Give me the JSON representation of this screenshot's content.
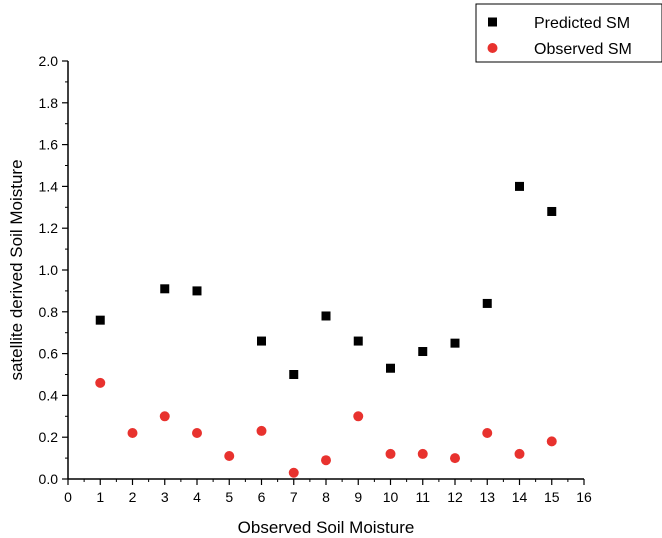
{
  "chart_data": {
    "type": "scatter",
    "title": "",
    "xlabel": "Observed Soil Moisture",
    "ylabel": "satellite derived Soil Moisture",
    "xlim": [
      0,
      16
    ],
    "ylim": [
      0.0,
      2.0
    ],
    "x_ticks": [
      0,
      1,
      2,
      3,
      4,
      5,
      6,
      7,
      8,
      9,
      10,
      11,
      12,
      13,
      14,
      15,
      16
    ],
    "y_ticks": [
      "0.0",
      "0.2",
      "0.4",
      "0.6",
      "0.8",
      "1.0",
      "1.2",
      "1.4",
      "1.6",
      "1.8",
      "2.0"
    ],
    "grid": false,
    "legend_position": "top-right",
    "series": [
      {
        "name": "Predicted SM",
        "marker": "square",
        "color": "#000000",
        "points": [
          {
            "x": 1,
            "y": 0.76
          },
          {
            "x": 3,
            "y": 0.91
          },
          {
            "x": 4,
            "y": 0.9
          },
          {
            "x": 6,
            "y": 0.66
          },
          {
            "x": 7,
            "y": 0.5
          },
          {
            "x": 8,
            "y": 0.78
          },
          {
            "x": 9,
            "y": 0.66
          },
          {
            "x": 10,
            "y": 0.53
          },
          {
            "x": 11,
            "y": 0.61
          },
          {
            "x": 12,
            "y": 0.65
          },
          {
            "x": 13,
            "y": 0.84
          },
          {
            "x": 14,
            "y": 1.4
          },
          {
            "x": 15,
            "y": 1.28
          }
        ]
      },
      {
        "name": " Observed SM",
        "marker": "circle",
        "color": "#e8322e",
        "points": [
          {
            "x": 1,
            "y": 0.46
          },
          {
            "x": 2,
            "y": 0.22
          },
          {
            "x": 3,
            "y": 0.3
          },
          {
            "x": 4,
            "y": 0.22
          },
          {
            "x": 5,
            "y": 0.11
          },
          {
            "x": 6,
            "y": 0.23
          },
          {
            "x": 7,
            "y": 0.03
          },
          {
            "x": 8,
            "y": 0.09
          },
          {
            "x": 9,
            "y": 0.3
          },
          {
            "x": 10,
            "y": 0.12
          },
          {
            "x": 11,
            "y": 0.12
          },
          {
            "x": 12,
            "y": 0.1
          },
          {
            "x": 13,
            "y": 0.22
          },
          {
            "x": 14,
            "y": 0.12
          },
          {
            "x": 15,
            "y": 0.18
          }
        ]
      }
    ]
  }
}
